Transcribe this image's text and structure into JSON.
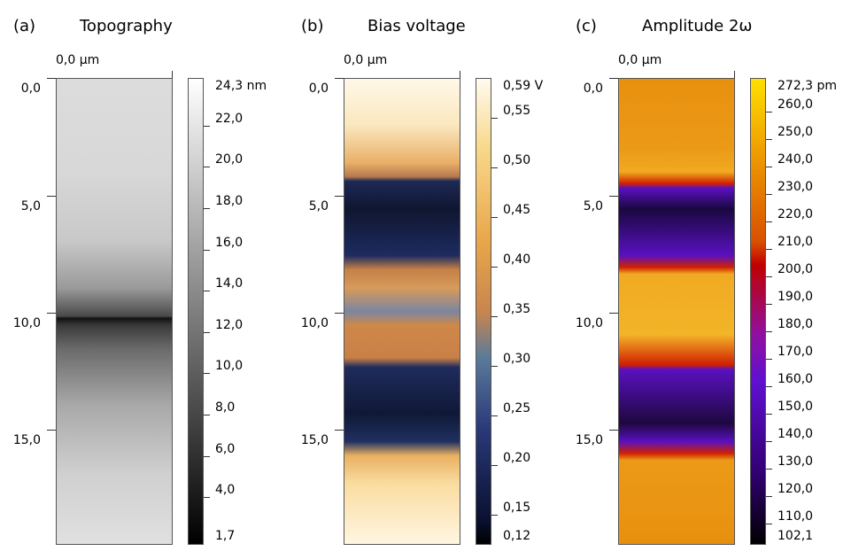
{
  "panels": [
    {
      "letter": "(a)",
      "title": "Topography",
      "x_origin_label": "0,0 µm",
      "y_ticks": [
        "0,0",
        "5,0",
        "10,0",
        "15,0"
      ],
      "colorbar": {
        "colormap": "grayscale",
        "min": 1.7,
        "max": 24.3,
        "labels": [
          {
            "v": 24.3,
            "t": "24,3 nm"
          },
          {
            "v": 22,
            "t": "22,0"
          },
          {
            "v": 20,
            "t": "20,0"
          },
          {
            "v": 18,
            "t": "18,0"
          },
          {
            "v": 16,
            "t": "16,0"
          },
          {
            "v": 14,
            "t": "14,0"
          },
          {
            "v": 12,
            "t": "12,0"
          },
          {
            "v": 10,
            "t": "10,0"
          },
          {
            "v": 8,
            "t": "8,0"
          },
          {
            "v": 6,
            "t": "6,0"
          },
          {
            "v": 4,
            "t": "4,0"
          },
          {
            "v": 1.7,
            "t": "1,7"
          }
        ]
      }
    },
    {
      "letter": "(b)",
      "title": "Bias voltage",
      "x_origin_label": "0,0 µm",
      "y_ticks": [
        "0,0",
        "5,0",
        "10,0",
        "15,0"
      ],
      "colorbar": {
        "colormap": "navy-orange-cream",
        "min": 0.12,
        "max": 0.59,
        "labels": [
          {
            "v": 0.59,
            "t": "0,59 V"
          },
          {
            "v": 0.55,
            "t": "0,55"
          },
          {
            "v": 0.5,
            "t": "0,50"
          },
          {
            "v": 0.45,
            "t": "0,45"
          },
          {
            "v": 0.4,
            "t": "0,40"
          },
          {
            "v": 0.35,
            "t": "0,35"
          },
          {
            "v": 0.3,
            "t": "0,30"
          },
          {
            "v": 0.25,
            "t": "0,25"
          },
          {
            "v": 0.2,
            "t": "0,20"
          },
          {
            "v": 0.15,
            "t": "0,15"
          },
          {
            "v": 0.12,
            "t": "0,12"
          }
        ]
      }
    },
    {
      "letter": "(c)",
      "title": "Amplitude 2ω",
      "x_origin_label": "0,0 µm",
      "y_ticks": [
        "0,0",
        "5,0",
        "10,0",
        "15,0"
      ],
      "colorbar": {
        "colormap": "black-purple-red-yellow",
        "min": 102.1,
        "max": 272.3,
        "labels": [
          {
            "v": 272.3,
            "t": "272,3 pm"
          },
          {
            "v": 260,
            "t": "260,0"
          },
          {
            "v": 250,
            "t": "250,0"
          },
          {
            "v": 240,
            "t": "240,0"
          },
          {
            "v": 230,
            "t": "230,0"
          },
          {
            "v": 220,
            "t": "220,0"
          },
          {
            "v": 210,
            "t": "210,0"
          },
          {
            "v": 200,
            "t": "200,0"
          },
          {
            "v": 190,
            "t": "190,0"
          },
          {
            "v": 180,
            "t": "180,0"
          },
          {
            "v": 170,
            "t": "170,0"
          },
          {
            "v": 160,
            "t": "160,0"
          },
          {
            "v": 150,
            "t": "150,0"
          },
          {
            "v": 140,
            "t": "140,0"
          },
          {
            "v": 130,
            "t": "130,0"
          },
          {
            "v": 120,
            "t": "120,0"
          },
          {
            "v": 110,
            "t": "110,0"
          },
          {
            "v": 102.1,
            "t": "102,1"
          }
        ]
      }
    }
  ]
}
